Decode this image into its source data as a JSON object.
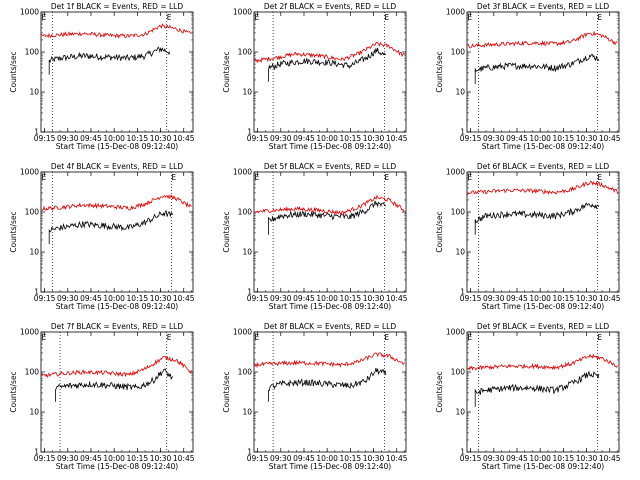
{
  "colors": {
    "events": "#000000",
    "lld": "#e00000",
    "axis": "#000000",
    "background": "#ffffff"
  },
  "common": {
    "ylabel": "Counts/sec",
    "xlabel": "Start Time (15-Dec-08 09:12:40)",
    "title_suffix": "BLACK = Events, RED = LLD",
    "x_ticks": [
      "09:15",
      "09:30",
      "09:45",
      "10:00",
      "10:15",
      "10:30",
      "10:45"
    ],
    "y_ticks": [
      "1",
      "10",
      "100",
      "1000"
    ],
    "ylim": [
      1,
      1000
    ],
    "marker_label": "E"
  },
  "chart_data": [
    {
      "type": "line",
      "title": "Det 1f",
      "xlim": [
        "09:12:40",
        "10:51:00"
      ],
      "dotted_lines": [
        "09:20",
        "10:34"
      ],
      "markers": [
        "09:13",
        "10:34"
      ],
      "series": [
        {
          "name": "Events",
          "x": [
            "09:18",
            "09:25",
            "09:40",
            "09:55",
            "10:10",
            "10:20",
            "10:30",
            "10:36"
          ],
          "values": [
            60,
            70,
            80,
            75,
            70,
            80,
            120,
            100
          ]
        },
        {
          "name": "LLD",
          "x": [
            "09:13",
            "09:25",
            "09:40",
            "09:55",
            "10:10",
            "10:20",
            "10:30",
            "10:40",
            "10:50"
          ],
          "values": [
            250,
            270,
            290,
            260,
            250,
            280,
            450,
            380,
            280
          ]
        }
      ]
    },
    {
      "type": "line",
      "title": "Det 2f",
      "xlim": [
        "09:12:40",
        "10:51:00"
      ],
      "dotted_lines": [
        "09:25",
        "10:37"
      ],
      "markers": [
        "09:13",
        "10:37"
      ],
      "series": [
        {
          "name": "Events",
          "x": [
            "09:22",
            "09:30",
            "09:45",
            "10:00",
            "10:15",
            "10:25",
            "10:32",
            "10:38"
          ],
          "values": [
            40,
            50,
            60,
            55,
            45,
            70,
            110,
            80
          ]
        },
        {
          "name": "LLD",
          "x": [
            "09:13",
            "09:25",
            "09:40",
            "09:55",
            "10:10",
            "10:20",
            "10:32",
            "10:40",
            "10:50"
          ],
          "values": [
            60,
            70,
            90,
            80,
            65,
            90,
            160,
            140,
            80
          ]
        }
      ]
    },
    {
      "type": "line",
      "title": "Det 3f",
      "xlim": [
        "09:12:40",
        "10:51:00"
      ],
      "dotted_lines": [
        "09:20",
        "10:37"
      ],
      "markers": [
        "09:13",
        "10:37"
      ],
      "series": [
        {
          "name": "Events",
          "x": [
            "09:18",
            "09:25",
            "09:40",
            "09:55",
            "10:10",
            "10:20",
            "10:32",
            "10:38"
          ],
          "values": [
            35,
            40,
            45,
            45,
            40,
            50,
            80,
            70
          ]
        },
        {
          "name": "LLD",
          "x": [
            "09:13",
            "09:25",
            "09:40",
            "09:55",
            "10:10",
            "10:20",
            "10:32",
            "10:40",
            "10:50"
          ],
          "values": [
            140,
            150,
            160,
            170,
            160,
            180,
            300,
            260,
            160
          ]
        }
      ]
    },
    {
      "type": "line",
      "title": "Det 4f",
      "xlim": [
        "09:12:40",
        "10:51:00"
      ],
      "dotted_lines": [
        "09:20",
        "10:37"
      ],
      "markers": [
        "09:13",
        "10:37"
      ],
      "series": [
        {
          "name": "Events",
          "x": [
            "09:18",
            "09:25",
            "09:40",
            "09:55",
            "10:10",
            "10:20",
            "10:32",
            "10:38"
          ],
          "values": [
            35,
            40,
            50,
            45,
            40,
            55,
            95,
            80
          ]
        },
        {
          "name": "LLD",
          "x": [
            "09:13",
            "09:25",
            "09:40",
            "09:55",
            "10:10",
            "10:20",
            "10:32",
            "10:40",
            "10:50"
          ],
          "values": [
            120,
            130,
            150,
            140,
            125,
            160,
            260,
            220,
            130
          ]
        }
      ]
    },
    {
      "type": "line",
      "title": "Det 5f",
      "xlim": [
        "09:12:40",
        "10:51:00"
      ],
      "dotted_lines": [
        "09:25",
        "10:37"
      ],
      "markers": [
        "09:13",
        "10:37"
      ],
      "series": [
        {
          "name": "Events",
          "x": [
            "09:22",
            "09:30",
            "09:45",
            "10:00",
            "10:15",
            "10:25",
            "10:32",
            "10:38"
          ],
          "values": [
            60,
            80,
            90,
            80,
            75,
            110,
            170,
            130
          ]
        },
        {
          "name": "LLD",
          "x": [
            "09:13",
            "09:25",
            "09:40",
            "09:55",
            "10:10",
            "10:20",
            "10:32",
            "10:40",
            "10:50"
          ],
          "values": [
            100,
            110,
            120,
            110,
            95,
            130,
            230,
            200,
            110
          ]
        }
      ]
    },
    {
      "type": "line",
      "title": "Det 6f",
      "xlim": [
        "09:12:40",
        "10:51:00"
      ],
      "dotted_lines": [
        "09:20",
        "10:37"
      ],
      "markers": [
        "09:13",
        "10:37"
      ],
      "series": [
        {
          "name": "Events",
          "x": [
            "09:18",
            "09:25",
            "09:40",
            "09:55",
            "10:10",
            "10:20",
            "10:32",
            "10:38"
          ],
          "values": [
            60,
            80,
            90,
            85,
            80,
            100,
            160,
            140
          ]
        },
        {
          "name": "LLD",
          "x": [
            "09:13",
            "09:25",
            "09:40",
            "09:55",
            "10:10",
            "10:20",
            "10:32",
            "10:40",
            "10:50"
          ],
          "values": [
            300,
            320,
            350,
            340,
            310,
            360,
            550,
            480,
            320
          ]
        }
      ]
    },
    {
      "type": "line",
      "title": "Det 7f",
      "xlim": [
        "09:12:40",
        "10:51:00"
      ],
      "dotted_lines": [
        "09:25",
        "10:34"
      ],
      "markers": [
        "09:13",
        "10:34"
      ],
      "series": [
        {
          "name": "Events",
          "x": [
            "09:22",
            "09:30",
            "09:45",
            "10:00",
            "10:15",
            "10:25",
            "10:32",
            "10:38"
          ],
          "values": [
            40,
            45,
            50,
            45,
            40,
            60,
            110,
            70
          ]
        },
        {
          "name": "LLD",
          "x": [
            "09:13",
            "09:25",
            "09:40",
            "09:55",
            "10:10",
            "10:20",
            "10:32",
            "10:40",
            "10:50"
          ],
          "values": [
            80,
            90,
            100,
            95,
            85,
            120,
            230,
            200,
            100
          ]
        }
      ]
    },
    {
      "type": "line",
      "title": "Det 8f",
      "xlim": [
        "09:12:40",
        "10:51:00"
      ],
      "dotted_lines": [
        "09:25",
        "10:37"
      ],
      "markers": [
        "09:13",
        "10:37"
      ],
      "series": [
        {
          "name": "Events",
          "x": [
            "09:22",
            "09:30",
            "09:45",
            "10:00",
            "10:15",
            "10:25",
            "10:32",
            "10:38"
          ],
          "values": [
            40,
            50,
            55,
            50,
            45,
            60,
            110,
            90
          ]
        },
        {
          "name": "LLD",
          "x": [
            "09:13",
            "09:25",
            "09:40",
            "09:55",
            "10:10",
            "10:20",
            "10:32",
            "10:40",
            "10:50"
          ],
          "values": [
            150,
            160,
            170,
            165,
            150,
            180,
            280,
            250,
            160
          ]
        }
      ]
    },
    {
      "type": "line",
      "title": "Det 9f",
      "xlim": [
        "09:12:40",
        "10:51:00"
      ],
      "dotted_lines": [
        "09:20",
        "10:37"
      ],
      "markers": [
        "09:13",
        "10:37"
      ],
      "series": [
        {
          "name": "Events",
          "x": [
            "09:18",
            "09:25",
            "09:40",
            "09:55",
            "10:10",
            "10:20",
            "10:32",
            "10:38"
          ],
          "values": [
            30,
            35,
            40,
            40,
            35,
            50,
            90,
            75
          ]
        },
        {
          "name": "LLD",
          "x": [
            "09:13",
            "09:25",
            "09:40",
            "09:55",
            "10:10",
            "10:20",
            "10:32",
            "10:40",
            "10:50"
          ],
          "values": [
            120,
            130,
            140,
            140,
            130,
            160,
            250,
            220,
            140
          ]
        }
      ]
    }
  ]
}
